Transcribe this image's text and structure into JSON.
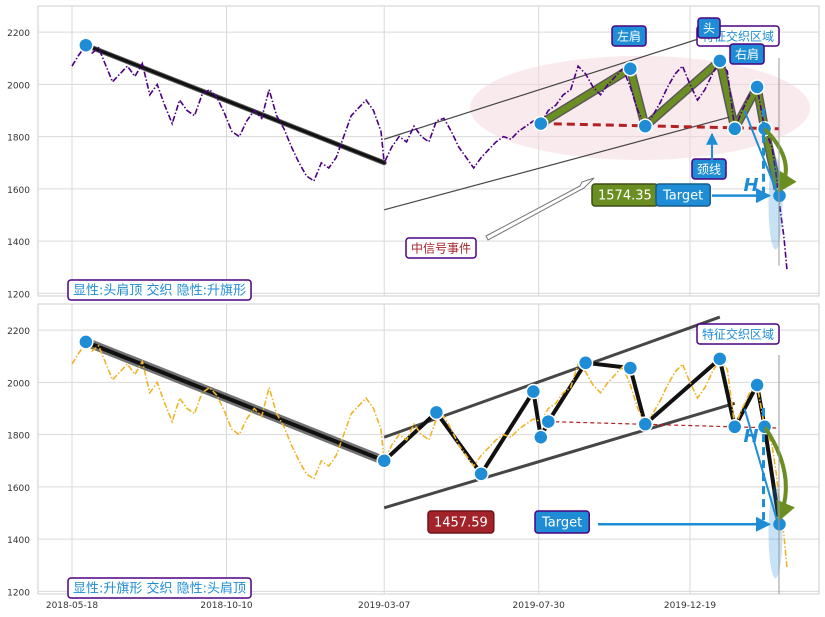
{
  "colors": {
    "top_series": "#4b0082",
    "bottom_series": "#f0b429",
    "marker": "#1f8dd6",
    "hs_fill": "#6b8e23",
    "dash_red": "#b22222",
    "label_text": "#1f8dd6",
    "label_border": "#4b0082",
    "box_blue": "#1f8dd6",
    "box_olive": "#6b8e23",
    "box_red": "#a3232b"
  },
  "chart_data": [
    {
      "type": "line",
      "panel": "top",
      "ylim": [
        1190,
        2300
      ],
      "yticks": [
        1200,
        1400,
        1600,
        1800,
        2000,
        2200
      ],
      "series": [
        {
          "color": "#4b0082",
          "style": "dash-dot",
          "points": [
            [
              "2018-05-18",
              2070
            ],
            [
              "2018-05-24",
              2110
            ],
            [
              "2018-05-31",
              2150
            ],
            [
              "2018-06-06",
              2120
            ],
            [
              "2018-06-12",
              2140
            ],
            [
              "2018-06-18",
              2080
            ],
            [
              "2018-06-25",
              2010
            ],
            [
              "2018-07-02",
              2040
            ],
            [
              "2018-07-09",
              2070
            ],
            [
              "2018-07-16",
              2030
            ],
            [
              "2018-07-23",
              2080
            ],
            [
              "2018-07-30",
              1960
            ],
            [
              "2018-08-06",
              2000
            ],
            [
              "2018-08-13",
              1920
            ],
            [
              "2018-08-20",
              1850
            ],
            [
              "2018-08-27",
              1940
            ],
            [
              "2018-09-03",
              1900
            ],
            [
              "2018-09-10",
              1880
            ],
            [
              "2018-09-17",
              1960
            ],
            [
              "2018-09-24",
              1980
            ],
            [
              "2018-10-01",
              1950
            ],
            [
              "2018-10-08",
              1890
            ],
            [
              "2018-10-15",
              1820
            ],
            [
              "2018-10-22",
              1800
            ],
            [
              "2018-10-29",
              1860
            ],
            [
              "2018-11-05",
              1900
            ],
            [
              "2018-11-12",
              1870
            ],
            [
              "2018-11-19",
              1980
            ],
            [
              "2018-11-26",
              1880
            ],
            [
              "2018-12-03",
              1830
            ],
            [
              "2018-12-10",
              1760
            ],
            [
              "2018-12-17",
              1700
            ],
            [
              "2018-12-24",
              1650
            ],
            [
              "2018-12-31",
              1630
            ],
            [
              "2019-01-07",
              1700
            ],
            [
              "2019-01-14",
              1680
            ],
            [
              "2019-01-21",
              1720
            ],
            [
              "2019-01-28",
              1800
            ],
            [
              "2019-02-04",
              1880
            ],
            [
              "2019-02-11",
              1910
            ],
            [
              "2019-02-18",
              1940
            ],
            [
              "2019-02-25",
              1900
            ],
            [
              "2019-03-04",
              1820
            ],
            [
              "2019-03-07",
              1700
            ],
            [
              "2019-03-14",
              1760
            ],
            [
              "2019-03-21",
              1800
            ],
            [
              "2019-03-28",
              1780
            ],
            [
              "2019-04-04",
              1840
            ],
            [
              "2019-04-11",
              1800
            ],
            [
              "2019-04-18",
              1780
            ],
            [
              "2019-04-25",
              1860
            ],
            [
              "2019-05-02",
              1870
            ],
            [
              "2019-05-09",
              1820
            ],
            [
              "2019-05-16",
              1760
            ],
            [
              "2019-05-23",
              1720
            ],
            [
              "2019-05-30",
              1680
            ],
            [
              "2019-06-06",
              1720
            ],
            [
              "2019-06-13",
              1750
            ],
            [
              "2019-06-20",
              1780
            ],
            [
              "2019-06-27",
              1800
            ],
            [
              "2019-07-04",
              1790
            ],
            [
              "2019-07-11",
              1820
            ],
            [
              "2019-07-18",
              1840
            ],
            [
              "2019-07-25",
              1860
            ],
            [
              "2019-08-01",
              1850
            ],
            [
              "2019-08-08",
              1900
            ],
            [
              "2019-08-15",
              1920
            ],
            [
              "2019-08-22",
              1960
            ],
            [
              "2019-08-29",
              1980
            ],
            [
              "2019-09-05",
              2070
            ],
            [
              "2019-09-12",
              2040
            ],
            [
              "2019-09-19",
              1990
            ],
            [
              "2019-09-26",
              1960
            ],
            [
              "2019-10-03",
              2000
            ],
            [
              "2019-10-10",
              2030
            ],
            [
              "2019-10-17",
              2060
            ],
            [
              "2019-10-24",
              1990
            ],
            [
              "2019-10-31",
              1900
            ],
            [
              "2019-11-07",
              1840
            ],
            [
              "2019-11-14",
              1880
            ],
            [
              "2019-11-21",
              1930
            ],
            [
              "2019-11-28",
              1990
            ],
            [
              "2019-12-05",
              2040
            ],
            [
              "2019-12-12",
              2070
            ],
            [
              "2019-12-19",
              2000
            ],
            [
              "2019-12-26",
              1940
            ],
            [
              "2020-01-02",
              1980
            ],
            [
              "2020-01-09",
              2040
            ],
            [
              "2020-01-16",
              2090
            ],
            [
              "2020-01-23",
              2050
            ],
            [
              "2020-01-30",
              1830
            ],
            [
              "2020-02-06",
              1900
            ],
            [
              "2020-02-13",
              1960
            ],
            [
              "2020-02-20",
              1990
            ],
            [
              "2020-02-27",
              1830
            ],
            [
              "2020-03-05",
              1760
            ],
            [
              "2020-03-09",
              1650
            ],
            [
              "2020-03-12",
              1540
            ],
            [
              "2020-03-16",
              1420
            ],
            [
              "2020-03-19",
              1290
            ]
          ]
        }
      ],
      "pattern": {
        "trend_line": [
          [
            "2018-05-31",
            2150
          ],
          [
            "2019-03-07",
            1700
          ]
        ],
        "channel_upper": [
          [
            "2019-03-07",
            1790
          ],
          [
            "2020-01-16",
            2200
          ]
        ],
        "channel_lower": [
          [
            "2019-03-07",
            1520
          ],
          [
            "2020-01-30",
            1880
          ]
        ],
        "head_shoulders": [
          [
            "2019-08-01",
            1850
          ],
          [
            "2019-10-24",
            2060
          ],
          [
            "2019-11-07",
            1840
          ],
          [
            "2020-01-16",
            2090
          ],
          [
            "2020-01-30",
            1830
          ],
          [
            "2020-02-20",
            1990
          ],
          [
            "2020-02-27",
            1830
          ],
          [
            "2020-03-12",
            1574
          ]
        ],
        "neckline": [
          [
            "2019-08-01",
            1850
          ],
          [
            "2020-03-12",
            1830
          ]
        ],
        "target_value": 1574.35
      },
      "labels": {
        "pattern_text": "显性:头肩顶 交织 隐性:升旗形",
        "left_shoulder": "左肩",
        "head": "头",
        "right_shoulder": "右肩",
        "neckline": "颈线",
        "feature_zone": "特征交织区域",
        "event": "中信号事件",
        "target_value_text": "1574.35",
        "target_text": "Target",
        "h_text": "H"
      }
    },
    {
      "type": "line",
      "panel": "bottom",
      "ylim": [
        1190,
        2300
      ],
      "yticks": [
        1200,
        1400,
        1600,
        1800,
        2000,
        2200
      ],
      "xticks": [
        "2018-05-18",
        "2018-10-10",
        "2019-03-07",
        "2019-07-30",
        "2019-12-19"
      ],
      "series": [
        {
          "color": "#f0b429",
          "style": "dash-dot",
          "points": [
            [
              "2018-05-18",
              2070
            ],
            [
              "2018-05-24",
              2110
            ],
            [
              "2018-05-31",
              2150
            ],
            [
              "2018-06-06",
              2120
            ],
            [
              "2018-06-12",
              2140
            ],
            [
              "2018-06-18",
              2080
            ],
            [
              "2018-06-25",
              2010
            ],
            [
              "2018-07-02",
              2040
            ],
            [
              "2018-07-09",
              2070
            ],
            [
              "2018-07-16",
              2030
            ],
            [
              "2018-07-23",
              2080
            ],
            [
              "2018-07-30",
              1960
            ],
            [
              "2018-08-06",
              2000
            ],
            [
              "2018-08-13",
              1920
            ],
            [
              "2018-08-20",
              1850
            ],
            [
              "2018-08-27",
              1940
            ],
            [
              "2018-09-03",
              1900
            ],
            [
              "2018-09-10",
              1880
            ],
            [
              "2018-09-17",
              1960
            ],
            [
              "2018-09-24",
              1980
            ],
            [
              "2018-10-01",
              1950
            ],
            [
              "2018-10-08",
              1890
            ],
            [
              "2018-10-15",
              1820
            ],
            [
              "2018-10-22",
              1800
            ],
            [
              "2018-10-29",
              1860
            ],
            [
              "2018-11-05",
              1900
            ],
            [
              "2018-11-12",
              1870
            ],
            [
              "2018-11-19",
              1980
            ],
            [
              "2018-11-26",
              1880
            ],
            [
              "2018-12-03",
              1830
            ],
            [
              "2018-12-10",
              1760
            ],
            [
              "2018-12-17",
              1700
            ],
            [
              "2018-12-24",
              1650
            ],
            [
              "2018-12-31",
              1630
            ],
            [
              "2019-01-07",
              1700
            ],
            [
              "2019-01-14",
              1680
            ],
            [
              "2019-01-21",
              1720
            ],
            [
              "2019-01-28",
              1800
            ],
            [
              "2019-02-04",
              1880
            ],
            [
              "2019-02-11",
              1910
            ],
            [
              "2019-02-18",
              1940
            ],
            [
              "2019-02-25",
              1900
            ],
            [
              "2019-03-04",
              1820
            ],
            [
              "2019-03-07",
              1700
            ],
            [
              "2019-03-14",
              1760
            ],
            [
              "2019-03-21",
              1800
            ],
            [
              "2019-03-28",
              1780
            ],
            [
              "2019-04-04",
              1840
            ],
            [
              "2019-04-11",
              1800
            ],
            [
              "2019-04-18",
              1780
            ],
            [
              "2019-04-25",
              1860
            ],
            [
              "2019-05-02",
              1870
            ],
            [
              "2019-05-09",
              1820
            ],
            [
              "2019-05-16",
              1760
            ],
            [
              "2019-05-23",
              1720
            ],
            [
              "2019-05-30",
              1680
            ],
            [
              "2019-06-06",
              1720
            ],
            [
              "2019-06-13",
              1750
            ],
            [
              "2019-06-20",
              1780
            ],
            [
              "2019-06-27",
              1800
            ],
            [
              "2019-07-04",
              1790
            ],
            [
              "2019-07-11",
              1820
            ],
            [
              "2019-07-18",
              1840
            ],
            [
              "2019-07-25",
              1860
            ],
            [
              "2019-08-01",
              1850
            ],
            [
              "2019-08-08",
              1900
            ],
            [
              "2019-08-15",
              1920
            ],
            [
              "2019-08-22",
              1960
            ],
            [
              "2019-08-29",
              1980
            ],
            [
              "2019-09-05",
              2070
            ],
            [
              "2019-09-12",
              2040
            ],
            [
              "2019-09-19",
              1990
            ],
            [
              "2019-09-26",
              1960
            ],
            [
              "2019-10-03",
              2000
            ],
            [
              "2019-10-10",
              2030
            ],
            [
              "2019-10-17",
              2060
            ],
            [
              "2019-10-24",
              1990
            ],
            [
              "2019-10-31",
              1900
            ],
            [
              "2019-11-07",
              1840
            ],
            [
              "2019-11-14",
              1880
            ],
            [
              "2019-11-21",
              1930
            ],
            [
              "2019-11-28",
              1990
            ],
            [
              "2019-12-05",
              2040
            ],
            [
              "2019-12-12",
              2070
            ],
            [
              "2019-12-19",
              2000
            ],
            [
              "2019-12-26",
              1940
            ],
            [
              "2020-01-02",
              1980
            ],
            [
              "2020-01-09",
              2040
            ],
            [
              "2020-01-16",
              2090
            ],
            [
              "2020-01-23",
              2050
            ],
            [
              "2020-01-30",
              1830
            ],
            [
              "2020-02-06",
              1900
            ],
            [
              "2020-02-13",
              1960
            ],
            [
              "2020-02-20",
              1990
            ],
            [
              "2020-02-27",
              1830
            ],
            [
              "2020-03-05",
              1760
            ],
            [
              "2020-03-09",
              1650
            ],
            [
              "2020-03-12",
              1540
            ],
            [
              "2020-03-16",
              1420
            ],
            [
              "2020-03-19",
              1290
            ]
          ]
        }
      ],
      "pattern": {
        "trend_line": [
          [
            "2018-05-31",
            2155
          ],
          [
            "2019-03-07",
            1700
          ]
        ],
        "channel_upper": [
          [
            "2019-03-07",
            1790
          ],
          [
            "2020-01-16",
            2250
          ]
        ],
        "channel_lower": [
          [
            "2019-03-07",
            1520
          ],
          [
            "2020-01-30",
            1920
          ]
        ],
        "flag_zigzag": [
          [
            "2019-03-07",
            1700
          ],
          [
            "2019-04-25",
            1885
          ],
          [
            "2019-06-06",
            1650
          ],
          [
            "2019-07-25",
            1965
          ],
          [
            "2019-08-01",
            1790
          ],
          [
            "2019-08-08",
            1850
          ],
          [
            "2019-09-12",
            2075
          ],
          [
            "2019-10-24",
            2055
          ],
          [
            "2019-11-07",
            1840
          ],
          [
            "2020-01-16",
            2090
          ],
          [
            "2020-01-30",
            1830
          ],
          [
            "2020-02-20",
            1990
          ],
          [
            "2020-02-27",
            1830
          ],
          [
            "2020-03-12",
            1457
          ]
        ],
        "neckline": [
          [
            "2019-08-08",
            1850
          ],
          [
            "2020-03-12",
            1825
          ]
        ],
        "target_value": 1457.59
      },
      "labels": {
        "pattern_text": "显性:升旗形 交织 隐性:头肩顶",
        "feature_zone": "特征交织区域",
        "target_value_text": "1457.59",
        "target_text": "Target",
        "h_text": "H"
      }
    }
  ]
}
